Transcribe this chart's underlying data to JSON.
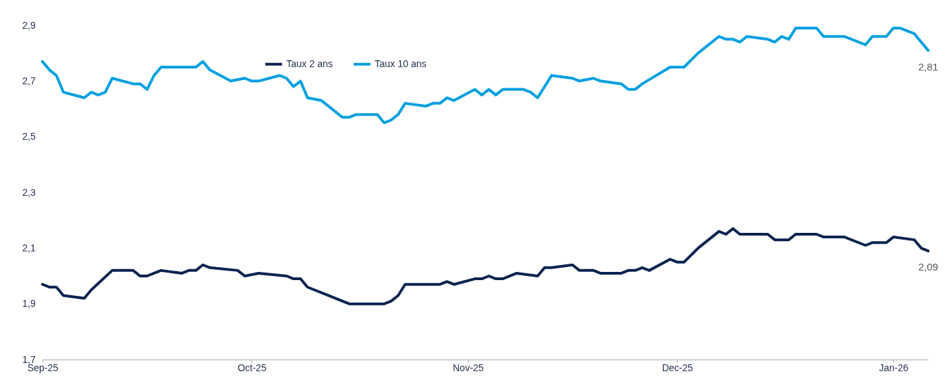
{
  "chart_data": {
    "type": "line",
    "legend": "top",
    "marker": "none",
    "line_style": "solid",
    "grid": false,
    "xlim": [
      "2025-09-01",
      "2026-01-06"
    ],
    "xticks": [
      {
        "value": "2025-09-01",
        "label": "Sep-25"
      },
      {
        "value": "2025-10-01",
        "label": "Oct-25"
      },
      {
        "value": "2025-11-01",
        "label": "Nov-25"
      },
      {
        "value": "2025-12-01",
        "label": "Dec-25"
      },
      {
        "value": "2026-01-01",
        "label": "Jan-26"
      }
    ],
    "ylim": [
      1.7,
      2.9
    ],
    "yticks": [
      {
        "value": 1.7,
        "label": "1,7"
      },
      {
        "value": 1.9,
        "label": "1,9"
      },
      {
        "value": 2.1,
        "label": "2,1"
      },
      {
        "value": 2.3,
        "label": "2,3"
      },
      {
        "value": 2.5,
        "label": "2,5"
      },
      {
        "value": 2.7,
        "label": "2,7"
      },
      {
        "value": 2.9,
        "label": "2,9"
      }
    ],
    "series": [
      {
        "name": "Taux 2 ans",
        "color": "#0a2450",
        "x": [
          "2025-09-01",
          "2025-09-02",
          "2025-09-03",
          "2025-09-04",
          "2025-09-07",
          "2025-09-08",
          "2025-09-11",
          "2025-09-14",
          "2025-09-15",
          "2025-09-16",
          "2025-09-17",
          "2025-09-18",
          "2025-09-21",
          "2025-09-22",
          "2025-09-23",
          "2025-09-24",
          "2025-09-25",
          "2025-09-29",
          "2025-09-30",
          "2025-10-02",
          "2025-10-06",
          "2025-10-07",
          "2025-10-08",
          "2025-10-09",
          "2025-10-12",
          "2025-10-14",
          "2025-10-15",
          "2025-10-20",
          "2025-10-21",
          "2025-10-22",
          "2025-10-23",
          "2025-10-28",
          "2025-10-29",
          "2025-10-30",
          "2025-11-02",
          "2025-11-03",
          "2025-11-04",
          "2025-11-05",
          "2025-11-06",
          "2025-11-08",
          "2025-11-11",
          "2025-11-12",
          "2025-11-13",
          "2025-11-16",
          "2025-11-17",
          "2025-11-19",
          "2025-11-20",
          "2025-11-23",
          "2025-11-24",
          "2025-11-25",
          "2025-11-26",
          "2025-11-27",
          "2025-11-30",
          "2025-12-01",
          "2025-12-02",
          "2025-12-04",
          "2025-12-07",
          "2025-12-08",
          "2025-12-09",
          "2025-12-10",
          "2025-12-11",
          "2025-12-14",
          "2025-12-15",
          "2025-12-17",
          "2025-12-18",
          "2025-12-21",
          "2025-12-22",
          "2025-12-25",
          "2025-12-28",
          "2025-12-29",
          "2025-12-31",
          "2026-01-01",
          "2026-01-04",
          "2026-01-05",
          "2026-01-06"
        ],
        "values": [
          1.97,
          1.96,
          1.96,
          1.93,
          1.92,
          1.95,
          2.02,
          2.02,
          2.0,
          2.0,
          2.01,
          2.02,
          2.01,
          2.02,
          2.02,
          2.04,
          2.03,
          2.02,
          2.0,
          2.01,
          2.0,
          1.99,
          1.99,
          1.96,
          1.93,
          1.91,
          1.9,
          1.9,
          1.91,
          1.93,
          1.97,
          1.97,
          1.98,
          1.97,
          1.99,
          1.99,
          2.0,
          1.99,
          1.99,
          2.01,
          2.0,
          2.03,
          2.03,
          2.04,
          2.02,
          2.02,
          2.01,
          2.01,
          2.02,
          2.02,
          2.03,
          2.02,
          2.06,
          2.05,
          2.05,
          2.1,
          2.16,
          2.15,
          2.17,
          2.15,
          2.15,
          2.15,
          2.13,
          2.13,
          2.15,
          2.15,
          2.14,
          2.14,
          2.11,
          2.12,
          2.12,
          2.14,
          2.13,
          2.1,
          2.09
        ]
      },
      {
        "name": "Taux 10 ans",
        "color": "#00a0e0",
        "x": [
          "2025-09-01",
          "2025-09-02",
          "2025-09-03",
          "2025-09-04",
          "2025-09-07",
          "2025-09-08",
          "2025-09-09",
          "2025-09-10",
          "2025-09-11",
          "2025-09-14",
          "2025-09-15",
          "2025-09-16",
          "2025-09-17",
          "2025-09-18",
          "2025-09-22",
          "2025-09-23",
          "2025-09-24",
          "2025-09-25",
          "2025-09-28",
          "2025-09-30",
          "2025-10-01",
          "2025-10-02",
          "2025-10-05",
          "2025-10-06",
          "2025-10-07",
          "2025-10-08",
          "2025-10-09",
          "2025-10-11",
          "2025-10-12",
          "2025-10-14",
          "2025-10-15",
          "2025-10-16",
          "2025-10-19",
          "2025-10-20",
          "2025-10-21",
          "2025-10-22",
          "2025-10-23",
          "2025-10-26",
          "2025-10-27",
          "2025-10-28",
          "2025-10-29",
          "2025-10-30",
          "2025-11-02",
          "2025-11-03",
          "2025-11-04",
          "2025-11-05",
          "2025-11-06",
          "2025-11-09",
          "2025-11-10",
          "2025-11-11",
          "2025-11-12",
          "2025-11-13",
          "2025-11-16",
          "2025-11-17",
          "2025-11-19",
          "2025-11-20",
          "2025-11-23",
          "2025-11-24",
          "2025-11-25",
          "2025-11-26",
          "2025-11-30",
          "2025-12-02",
          "2025-12-04",
          "2025-12-07",
          "2025-12-08",
          "2025-12-09",
          "2025-12-10",
          "2025-12-11",
          "2025-12-14",
          "2025-12-15",
          "2025-12-16",
          "2025-12-17",
          "2025-12-18",
          "2025-12-21",
          "2025-12-22",
          "2025-12-25",
          "2025-12-28",
          "2025-12-29",
          "2025-12-31",
          "2026-01-01",
          "2026-01-02",
          "2026-01-04",
          "2026-01-06"
        ],
        "values": [
          2.77,
          2.74,
          2.72,
          2.66,
          2.64,
          2.66,
          2.65,
          2.66,
          2.71,
          2.69,
          2.69,
          2.67,
          2.72,
          2.75,
          2.75,
          2.75,
          2.77,
          2.74,
          2.7,
          2.71,
          2.7,
          2.7,
          2.72,
          2.71,
          2.68,
          2.7,
          2.64,
          2.63,
          2.61,
          2.57,
          2.57,
          2.58,
          2.58,
          2.55,
          2.56,
          2.58,
          2.62,
          2.61,
          2.62,
          2.62,
          2.64,
          2.63,
          2.67,
          2.65,
          2.67,
          2.65,
          2.67,
          2.67,
          2.66,
          2.64,
          2.68,
          2.72,
          2.71,
          2.7,
          2.71,
          2.7,
          2.69,
          2.67,
          2.67,
          2.69,
          2.75,
          2.75,
          2.8,
          2.86,
          2.85,
          2.85,
          2.84,
          2.86,
          2.85,
          2.84,
          2.86,
          2.85,
          2.89,
          2.89,
          2.86,
          2.86,
          2.83,
          2.86,
          2.86,
          2.89,
          2.89,
          2.87,
          2.81
        ]
      }
    ],
    "annotations": [
      {
        "text": "2,81",
        "x": "2026-01-06",
        "y": 2.81
      },
      {
        "text": "2,09",
        "x": "2026-01-06",
        "y": 2.09
      }
    ]
  }
}
